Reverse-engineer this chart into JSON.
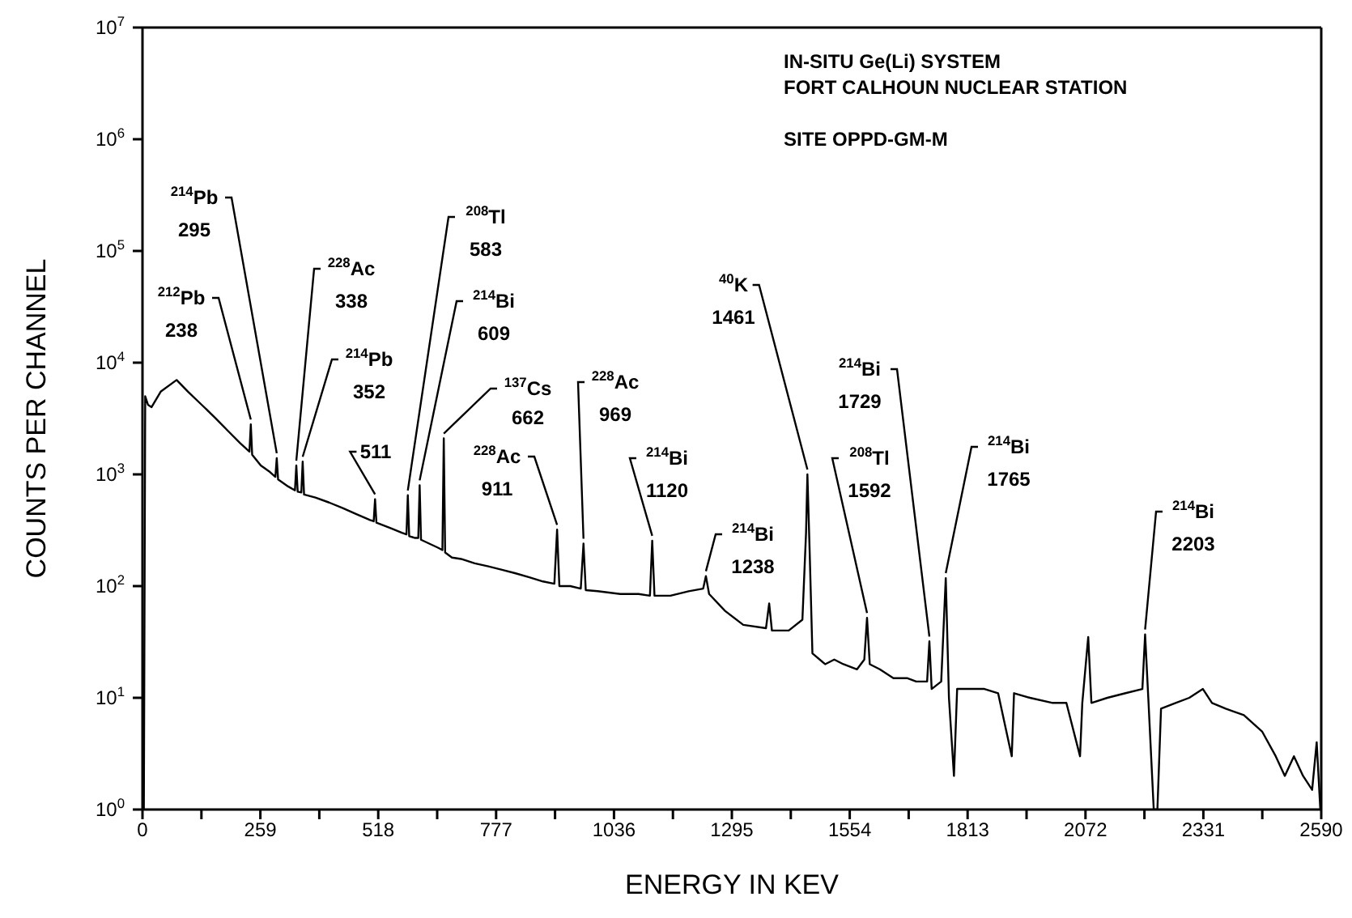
{
  "chart_data": {
    "type": "line",
    "xlabel": "ENERGY IN KEV",
    "ylabel": "COUNTS PER CHANNEL",
    "color": "#000000",
    "log": true,
    "xlim": [
      0,
      2590
    ],
    "ylim": [
      1,
      10000000
    ],
    "xticks": [
      0,
      {
        "value": 129.5,
        "label": null
      },
      259,
      {
        "value": 388.5,
        "label": null
      },
      518,
      {
        "value": 647.5,
        "label": null
      },
      777,
      {
        "value": 906.5,
        "label": null
      },
      1036,
      {
        "value": 1165.5,
        "label": null
      },
      1295,
      {
        "value": 1424.5,
        "label": null
      },
      1554,
      {
        "value": 1683.5,
        "label": null
      },
      1813,
      {
        "value": 1942.5,
        "label": null
      },
      2072,
      {
        "value": 2201.5,
        "label": null
      },
      2331,
      {
        "value": 2460.5,
        "label": null
      },
      2590
    ],
    "yticks": [
      {
        "value": 1,
        "label": "10$^{0}$"
      },
      {
        "value": 10,
        "label": "10$^{1}$"
      },
      {
        "value": 100,
        "label": "10$^{2}$"
      },
      {
        "value": 1000,
        "label": "10$^{3}$"
      },
      {
        "value": 10000,
        "label": "10$^{4}$"
      },
      {
        "value": 100000,
        "label": "10$^{5}$"
      },
      {
        "value": 1000000,
        "label": "10$^{6}$"
      },
      {
        "value": 10000000,
        "label": "10$^{7}$"
      }
    ],
    "x": [
      0,
      3,
      6,
      12,
      20,
      40,
      75,
      100,
      130,
      160,
      190,
      215,
      235,
      238,
      241,
      260,
      280,
      292,
      295,
      298,
      320,
      335,
      338,
      341,
      349,
      352,
      355,
      380,
      410,
      440,
      470,
      500,
      508,
      511,
      514,
      545,
      570,
      580,
      583,
      586,
      598,
      606,
      609,
      612,
      630,
      650,
      659,
      662,
      665,
      680,
      700,
      730,
      760,
      790,
      820,
      850,
      880,
      905,
      911,
      916,
      940,
      963,
      969,
      974,
      1000,
      1050,
      1090,
      1115,
      1120,
      1125,
      1160,
      1200,
      1232,
      1238,
      1245,
      1280,
      1320,
      1370,
      1377,
      1383,
      1420,
      1450,
      1458,
      1461,
      1466,
      1472,
      1500,
      1520,
      1540,
      1570,
      1586,
      1592,
      1598,
      1620,
      1650,
      1680,
      1700,
      1724,
      1729,
      1734,
      1755,
      1765,
      1772,
      1783,
      1790,
      1815,
      1850,
      1880,
      1910,
      1915,
      1950,
      2000,
      2030,
      2060,
      2065,
      2078,
      2085,
      2120,
      2160,
      2197,
      2203,
      2210,
      2222,
      2230,
      2238,
      2270,
      2300,
      2330,
      2350,
      2380,
      2420,
      2460,
      2490,
      2510,
      2530,
      2550,
      2570,
      2580,
      2588
    ],
    "values": [
      1,
      1,
      5000,
      4200,
      4000,
      5500,
      7000,
      5500,
      4200,
      3200,
      2400,
      1900,
      1600,
      2800,
      1500,
      1200,
      1050,
      950,
      1400,
      900,
      780,
      720,
      1200,
      700,
      690,
      1300,
      660,
      620,
      560,
      500,
      440,
      390,
      380,
      600,
      370,
      330,
      300,
      290,
      650,
      280,
      270,
      270,
      800,
      260,
      240,
      220,
      210,
      2100,
      200,
      180,
      175,
      160,
      150,
      140,
      130,
      120,
      110,
      105,
      320,
      100,
      100,
      95,
      240,
      92,
      90,
      85,
      85,
      82,
      255,
      82,
      82,
      90,
      95,
      123,
      85,
      60,
      45,
      42,
      70,
      40,
      40,
      50,
      300,
      1000,
      200,
      25,
      20,
      22,
      20,
      18,
      22,
      52,
      20,
      18,
      15,
      15,
      14,
      14,
      32,
      12,
      14,
      118,
      10,
      2,
      12,
      12,
      12,
      11,
      3,
      11,
      10,
      9,
      9,
      3,
      9,
      35,
      9,
      10,
      11,
      12,
      37,
      10,
      1,
      1,
      8,
      9,
      10,
      12,
      9,
      8,
      7,
      5,
      3,
      2,
      3,
      2,
      1.5,
      4,
      1
    ],
    "annotations": [
      "IN-SITU Ge(Li) SYSTEM",
      "FORT CALHOUN NUCLEAR STATION",
      "SITE OPPD-GM-M",
      {
        "text": "$^{212}$Pb\n238",
        "x": 238,
        "y": 2800
      },
      {
        "text": "$^{214}$Pb\n295",
        "x": 295,
        "y": 1400
      },
      {
        "text": "$^{228}$Ac\n338",
        "x": 338,
        "y": 1200
      },
      {
        "text": "$^{214}$Pb\n352",
        "x": 352,
        "y": 1300
      },
      {
        "text": "511",
        "x": 511,
        "y": 600
      },
      {
        "text": "$^{208}$Tl\n583",
        "x": 583,
        "y": 650
      },
      {
        "text": "$^{214}$Bi\n609",
        "x": 609,
        "y": 800
      },
      {
        "text": "$^{137}$Cs\n662",
        "x": 662,
        "y": 2100
      },
      {
        "text": "$^{228}$Ac\n911",
        "x": 911,
        "y": 320
      },
      {
        "text": "$^{228}$Ac\n969",
        "x": 969,
        "y": 240
      },
      {
        "text": "$^{214}$Bi\n1120",
        "x": 1120,
        "y": 255
      },
      {
        "text": "$^{214}$Bi\n1238",
        "x": 1238,
        "y": 123
      },
      {
        "text": "$^{40}$K\n1461",
        "x": 1461,
        "y": 1000
      },
      {
        "text": "$^{208}$Tl\n1592",
        "x": 1592,
        "y": 52
      },
      {
        "text": "$^{214}$Bi\n1729",
        "x": 1729,
        "y": 32
      },
      {
        "text": "$^{214}$Bi\n1765",
        "x": 1765,
        "y": 118
      },
      {
        "text": "$^{214}$Bi\n2203",
        "x": 2203,
        "y": 37
      }
    ]
  }
}
